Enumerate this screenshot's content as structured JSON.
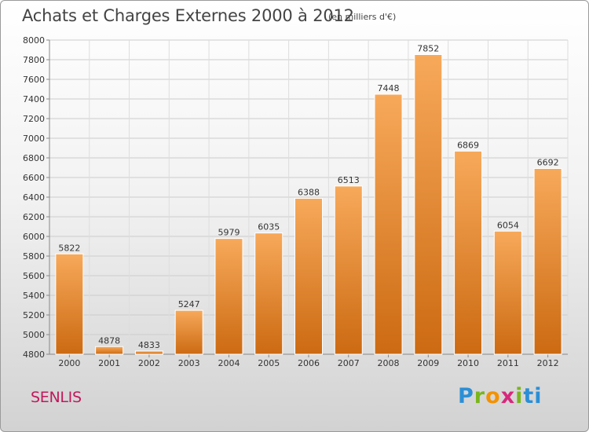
{
  "header": {
    "title": "Achats et Charges Externes 2000 à 2012",
    "subtitle": "(en milliers d'€)"
  },
  "footer": {
    "city": "SENLIS",
    "logo": "Proxiti"
  },
  "colors": {
    "bar_light": "#f7a95a",
    "bar_dark": "#cc6a12",
    "grid": "#cccccc",
    "city": "#c2185b"
  },
  "chart_data": {
    "type": "bar",
    "categories": [
      "2000",
      "2001",
      "2002",
      "2003",
      "2004",
      "2005",
      "2006",
      "2007",
      "2008",
      "2009",
      "2010",
      "2011",
      "2012"
    ],
    "values": [
      5822,
      4878,
      4833,
      5247,
      5979,
      6035,
      6388,
      6513,
      7448,
      7852,
      6869,
      6054,
      6692
    ],
    "ylim": [
      4800,
      8000
    ],
    "yticks": [
      4800,
      5000,
      5200,
      5400,
      5600,
      5800,
      6000,
      6200,
      6400,
      6600,
      6800,
      7000,
      7200,
      7400,
      7600,
      7800,
      8000
    ],
    "grid": true,
    "legend": "none"
  }
}
